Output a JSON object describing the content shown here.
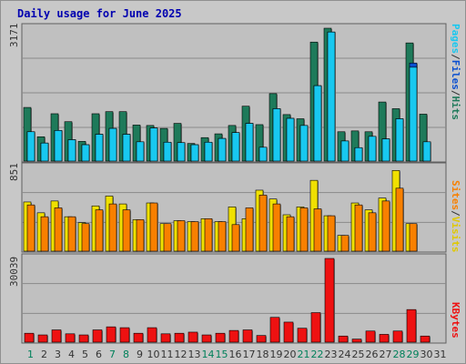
{
  "title": "Daily usage for June 2025",
  "chart_data": [
    {
      "type": "bar",
      "name": "Hits/Files/Pages",
      "ymax_label": "3171",
      "ymax": 3171,
      "categories": [
        "1",
        "2",
        "3",
        "4",
        "5",
        "6",
        "7",
        "8",
        "9",
        "10",
        "11",
        "12",
        "13",
        "14",
        "15",
        "16",
        "17",
        "18",
        "19",
        "20",
        "21",
        "22",
        "23",
        "24",
        "25",
        "26",
        "27",
        "28",
        "29",
        "30",
        "31"
      ],
      "legend": [
        "Pages",
        "Files",
        "Hits"
      ],
      "series": [
        {
          "name": "Hits",
          "color": "#1e7a5a",
          "values": [
            1280,
            580,
            1130,
            940,
            470,
            1130,
            1180,
            1180,
            860,
            850,
            780,
            900,
            420,
            560,
            650,
            850,
            1310,
            870,
            1610,
            1110,
            1010,
            2840,
            3171,
            700,
            720,
            700,
            1410,
            1250,
            2820,
            1120,
            0
          ]
        },
        {
          "name": "Files",
          "color": "#0a4fd0",
          "values": [
            700,
            430,
            730,
            510,
            390,
            640,
            780,
            640,
            460,
            790,
            450,
            440,
            390,
            450,
            540,
            680,
            900,
            330,
            1250,
            1020,
            850,
            1800,
            3080,
            480,
            320,
            590,
            530,
            1010,
            2340,
            460,
            0
          ]
        },
        {
          "name": "Pages",
          "color": "#18c8f0",
          "values": [
            700,
            430,
            730,
            510,
            390,
            640,
            780,
            640,
            460,
            790,
            450,
            440,
            390,
            450,
            540,
            680,
            900,
            330,
            1250,
            1020,
            850,
            1800,
            3080,
            480,
            320,
            590,
            530,
            1010,
            2240,
            460,
            0
          ]
        }
      ]
    },
    {
      "type": "bar",
      "name": "Visits/Sites",
      "ymax_label": "851",
      "ymax": 851,
      "categories": [
        "1",
        "2",
        "3",
        "4",
        "5",
        "6",
        "7",
        "8",
        "9",
        "10",
        "11",
        "12",
        "13",
        "14",
        "15",
        "16",
        "17",
        "18",
        "19",
        "20",
        "21",
        "22",
        "23",
        "24",
        "25",
        "26",
        "27",
        "28",
        "29",
        "30",
        "31"
      ],
      "legend": [
        "Sites",
        "Visits"
      ],
      "series": [
        {
          "name": "Visits",
          "color": "#f0e000",
          "values": [
            500,
            390,
            510,
            350,
            290,
            460,
            560,
            480,
            320,
            490,
            280,
            310,
            300,
            330,
            300,
            450,
            330,
            620,
            530,
            370,
            450,
            720,
            360,
            160,
            490,
            420,
            540,
            820,
            280,
            0,
            0
          ]
        },
        {
          "name": "Sites",
          "color": "#f88000",
          "values": [
            470,
            350,
            440,
            350,
            280,
            420,
            480,
            420,
            320,
            490,
            280,
            310,
            300,
            330,
            300,
            270,
            440,
            570,
            480,
            350,
            440,
            430,
            360,
            160,
            470,
            390,
            510,
            640,
            280,
            0,
            0
          ]
        }
      ]
    },
    {
      "type": "bar",
      "name": "KBytes",
      "ymax_label": "30039",
      "ymax": 30039,
      "categories": [
        "1",
        "2",
        "3",
        "4",
        "5",
        "6",
        "7",
        "8",
        "9",
        "10",
        "11",
        "12",
        "13",
        "14",
        "15",
        "16",
        "17",
        "18",
        "19",
        "20",
        "21",
        "22",
        "23",
        "24",
        "25",
        "26",
        "27",
        "28",
        "29",
        "30",
        "31"
      ],
      "legend": [
        "KBytes"
      ],
      "series": [
        {
          "name": "KBytes",
          "color": "#ee1111",
          "values": [
            3200,
            2600,
            4400,
            3000,
            2600,
            4400,
            5500,
            5200,
            3200,
            5200,
            3000,
            3200,
            3600,
            2600,
            3200,
            4200,
            4400,
            2400,
            8900,
            7200,
            5000,
            10600,
            30039,
            2200,
            1100,
            4000,
            2800,
            4000,
            11700,
            2200,
            0
          ]
        }
      ]
    }
  ],
  "day_labels": [
    "1",
    "2",
    "3",
    "4",
    "5",
    "6",
    "7",
    "8",
    "9",
    "10",
    "11",
    "12",
    "13",
    "14",
    "15",
    "16",
    "17",
    "18",
    "19",
    "20",
    "21",
    "22",
    "23",
    "24",
    "25",
    "26",
    "27",
    "28",
    "29",
    "30",
    "31"
  ],
  "weekend_days": [
    1,
    7,
    8,
    14,
    15,
    21,
    22,
    28,
    29
  ],
  "weekend_color": "#00805a",
  "weekday_color": "#333333"
}
